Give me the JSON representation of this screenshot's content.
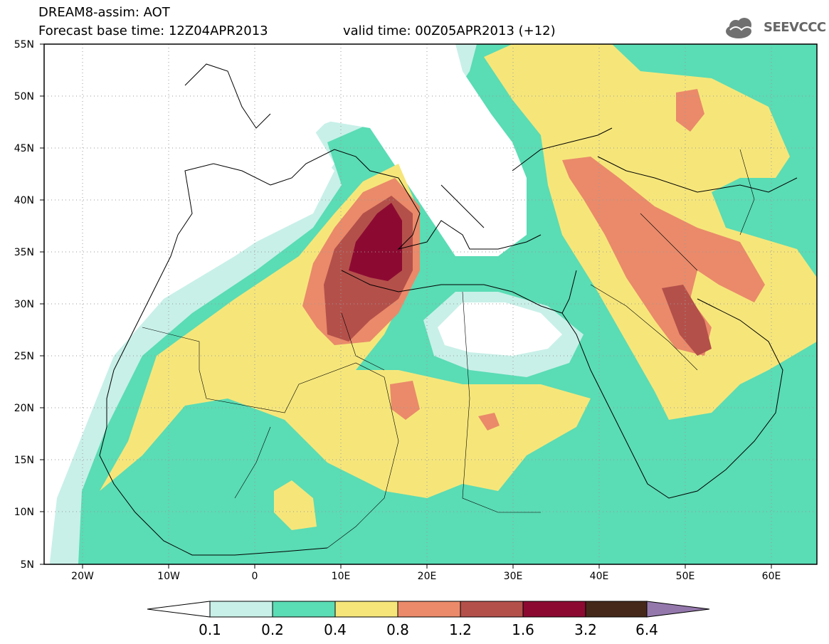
{
  "header": {
    "line1": "DREAM8-assim: AOT",
    "line2_base": "Forecast base time: 12Z04APR2013",
    "line2_valid": "valid time: 00Z05APR2013 (+12)",
    "logo_text": "SEEVCCC"
  },
  "map": {
    "lon_ticks": [
      "20W",
      "10W",
      "0",
      "10E",
      "20E",
      "30E",
      "40E",
      "50E",
      "60E"
    ],
    "lat_ticks": [
      "55N",
      "50N",
      "45N",
      "40N",
      "35N",
      "30N",
      "25N",
      "20N",
      "15N",
      "10N",
      "5N"
    ],
    "lon_range": [
      -25,
      65
    ],
    "lat_range": [
      5,
      55
    ]
  },
  "colorbar": {
    "labels": [
      "0.1",
      "0.2",
      "0.4",
      "0.8",
      "1.2",
      "1.6",
      "3.2",
      "6.4"
    ],
    "colors": [
      "#ffffff",
      "#c8f0e8",
      "#5adcb4",
      "#f6e67a",
      "#ea8a6a",
      "#b4504a",
      "#8c0a32",
      "#46281a",
      "#9478ac"
    ]
  }
}
